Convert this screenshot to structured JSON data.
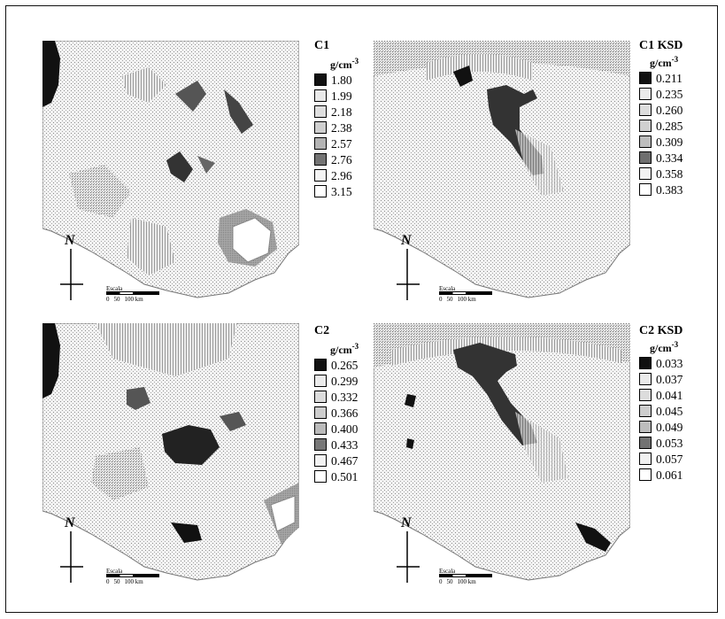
{
  "panels": [
    {
      "title": "C1",
      "unit": "g/cm",
      "unit_exp": "-3",
      "classes": [
        {
          "value": "1.80",
          "color": "#111111"
        },
        {
          "value": "1.99",
          "color": "#e9e9e9"
        },
        {
          "value": "2.18",
          "color": "#dedede"
        },
        {
          "value": "2.38",
          "color": "#cfcfcf"
        },
        {
          "value": "2.57",
          "color": "#b3b3b3"
        },
        {
          "value": "2.76",
          "color": "#737373"
        },
        {
          "value": "2.96",
          "color": "#f4f4f4"
        },
        {
          "value": "3.15",
          "color": "#ffffff"
        }
      ]
    },
    {
      "title": "C1 KSD",
      "unit": "g/cm",
      "unit_exp": "-3",
      "classes": [
        {
          "value": "0.211",
          "color": "#111111"
        },
        {
          "value": "0.235",
          "color": "#eaeaea"
        },
        {
          "value": "0.260",
          "color": "#dddddd"
        },
        {
          "value": "0.285",
          "color": "#d0d0d0"
        },
        {
          "value": "0.309",
          "color": "#bdbdbd"
        },
        {
          "value": "0.334",
          "color": "#6f6f6f"
        },
        {
          "value": "0.358",
          "color": "#f2f2f2"
        },
        {
          "value": "0.383",
          "color": "#ffffff"
        }
      ]
    },
    {
      "title": "C2",
      "unit": "g/cm",
      "unit_exp": "-3",
      "classes": [
        {
          "value": "0.265",
          "color": "#111111"
        },
        {
          "value": "0.299",
          "color": "#ebebeb"
        },
        {
          "value": "0.332",
          "color": "#dcdcdc"
        },
        {
          "value": "0.366",
          "color": "#cdcdcd"
        },
        {
          "value": "0.400",
          "color": "#bababa"
        },
        {
          "value": "0.433",
          "color": "#777777"
        },
        {
          "value": "0.467",
          "color": "#f2f2f2"
        },
        {
          "value": "0.501",
          "color": "#ffffff"
        }
      ]
    },
    {
      "title": "C2 KSD",
      "unit": "g/cm",
      "unit_exp": "-3",
      "classes": [
        {
          "value": "0.033",
          "color": "#111111"
        },
        {
          "value": "0.037",
          "color": "#ebebeb"
        },
        {
          "value": "0.041",
          "color": "#dcdcdc"
        },
        {
          "value": "0.045",
          "color": "#cdcdcd"
        },
        {
          "value": "0.049",
          "color": "#bdbdbd"
        },
        {
          "value": "0.053",
          "color": "#727272"
        },
        {
          "value": "0.057",
          "color": "#f1f1f1"
        },
        {
          "value": "0.061",
          "color": "#ffffff"
        }
      ]
    }
  ],
  "north_label": "N",
  "scale_bar": {
    "label": "Escala",
    "ticks": [
      "0",
      "50",
      "100 km"
    ]
  }
}
